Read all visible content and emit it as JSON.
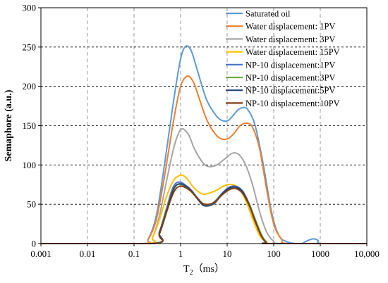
{
  "chart_data": {
    "type": "line",
    "xscale": "log",
    "xlim": [
      0.001,
      10000
    ],
    "ylim": [
      0,
      300
    ],
    "x_ticks": [
      {
        "value": 0.001,
        "label": "0.001"
      },
      {
        "value": 0.01,
        "label": "0.01"
      },
      {
        "value": 0.1,
        "label": "0.1"
      },
      {
        "value": 1,
        "label": "1"
      },
      {
        "value": 10,
        "label": "10"
      },
      {
        "value": 100,
        "label": "100"
      },
      {
        "value": 1000,
        "label": "1000"
      },
      {
        "value": 10000,
        "label": "10,000"
      }
    ],
    "y_ticks": [
      0,
      50,
      100,
      150,
      200,
      250,
      300
    ],
    "xlabel_main": "T",
    "xlabel_sub": "2",
    "xlabel_unit": "（ms）",
    "ylabel": "Semaphore (a.u.)",
    "grid": {
      "x": "vertical dashed gray",
      "y": "horizontal dashed black"
    },
    "legend_position": "top-right",
    "series": [
      {
        "name": "Saturated oil",
        "color": "#5B9BD5",
        "x": [
          0.15,
          0.2,
          0.3,
          0.45,
          0.7,
          1.0,
          1.3,
          1.7,
          2.3,
          3.5,
          5,
          7,
          10,
          13,
          17,
          22,
          28,
          40,
          60,
          90,
          130,
          200,
          300,
          400,
          500,
          700,
          900,
          1100
        ],
        "y": [
          0,
          5,
          35,
          100,
          180,
          235,
          251,
          245,
          220,
          185,
          168,
          158,
          156,
          162,
          170,
          173,
          170,
          150,
          100,
          40,
          10,
          2,
          0,
          0,
          3,
          6,
          4,
          0
        ]
      },
      {
        "name": "Water displacement: 1PV",
        "color": "#ED7D31",
        "x": [
          0.15,
          0.2,
          0.3,
          0.45,
          0.7,
          1.0,
          1.4,
          1.9,
          2.5,
          3.5,
          5,
          7,
          10,
          14,
          19,
          26,
          35,
          50,
          70,
          100,
          150,
          220
        ],
        "y": [
          0,
          5,
          30,
          85,
          155,
          200,
          213,
          205,
          185,
          160,
          143,
          134,
          133,
          140,
          150,
          153,
          148,
          120,
          70,
          25,
          5,
          0
        ]
      },
      {
        "name": "Water displacement: 3PV",
        "color": "#A5A5A5",
        "x": [
          0.18,
          0.25,
          0.35,
          0.5,
          0.7,
          0.9,
          1.1,
          1.5,
          2,
          3,
          4,
          6,
          9,
          13,
          18,
          25,
          35,
          50,
          70,
          100,
          150
        ],
        "y": [
          0,
          8,
          35,
          80,
          120,
          140,
          146,
          138,
          120,
          103,
          98,
          100,
          108,
          115,
          113,
          100,
          75,
          40,
          15,
          3,
          0
        ]
      },
      {
        "name": "Water displacement: 15PV",
        "color": "#FFC000",
        "x": [
          0.18,
          0.25,
          0.35,
          0.5,
          0.7,
          0.9,
          1.1,
          1.4,
          2,
          3,
          4,
          6,
          9,
          13,
          18,
          25,
          35,
          50,
          70,
          90
        ],
        "y": [
          0,
          8,
          30,
          60,
          80,
          86,
          87,
          82,
          70,
          63,
          64,
          68,
          74,
          75,
          70,
          55,
          32,
          10,
          2,
          0
        ]
      },
      {
        "name": "NP-10 displacement:1PV",
        "color": "#4472C4",
        "x": [
          0.25,
          0.35,
          0.5,
          0.65,
          0.8,
          1.0,
          1.3,
          1.7,
          2.3,
          3,
          4,
          5.5,
          7.5,
          10,
          13,
          17,
          22,
          30,
          40,
          55,
          70,
          85
        ],
        "y": [
          0,
          15,
          45,
          68,
          77,
          78,
          74,
          68,
          58,
          50,
          49,
          54,
          63,
          70,
          73,
          72,
          66,
          50,
          30,
          10,
          2,
          0
        ]
      },
      {
        "name": "NP-10 displacement:3PV",
        "color": "#70AD47",
        "x": [
          0.25,
          0.35,
          0.5,
          0.65,
          0.8,
          1.0,
          1.3,
          1.7,
          2.3,
          3,
          4,
          5.5,
          7.5,
          10,
          13,
          17,
          22,
          30,
          40,
          55,
          70,
          85
        ],
        "y": [
          0,
          14,
          43,
          65,
          74,
          75,
          72,
          66,
          57,
          50,
          49,
          53,
          62,
          68,
          71,
          70,
          65,
          50,
          31,
          11,
          2,
          0
        ]
      },
      {
        "name": "NP-10 displacement:5PV",
        "color": "#264478",
        "x": [
          0.25,
          0.35,
          0.5,
          0.65,
          0.8,
          1.0,
          1.3,
          1.7,
          2.3,
          3,
          4,
          5.5,
          7.5,
          10,
          13,
          17,
          22,
          30,
          40,
          55,
          70,
          85
        ],
        "y": [
          0,
          14,
          42,
          64,
          74,
          76,
          73,
          67,
          57,
          49,
          48,
          52,
          62,
          69,
          72,
          71,
          65,
          49,
          29,
          9,
          1,
          0
        ]
      },
      {
        "name": "NP-10 displacement:10PV",
        "color": "#843C0C",
        "x": [
          0.25,
          0.35,
          0.5,
          0.65,
          0.8,
          1.0,
          1.3,
          1.7,
          2.3,
          3,
          4,
          5.5,
          7.5,
          10,
          13,
          17,
          22,
          30,
          40,
          55,
          70,
          85
        ],
        "y": [
          0,
          12,
          40,
          60,
          70,
          73,
          71,
          66,
          58,
          51,
          50,
          53,
          61,
          67,
          70,
          69,
          63,
          48,
          28,
          9,
          1,
          0
        ]
      }
    ]
  }
}
